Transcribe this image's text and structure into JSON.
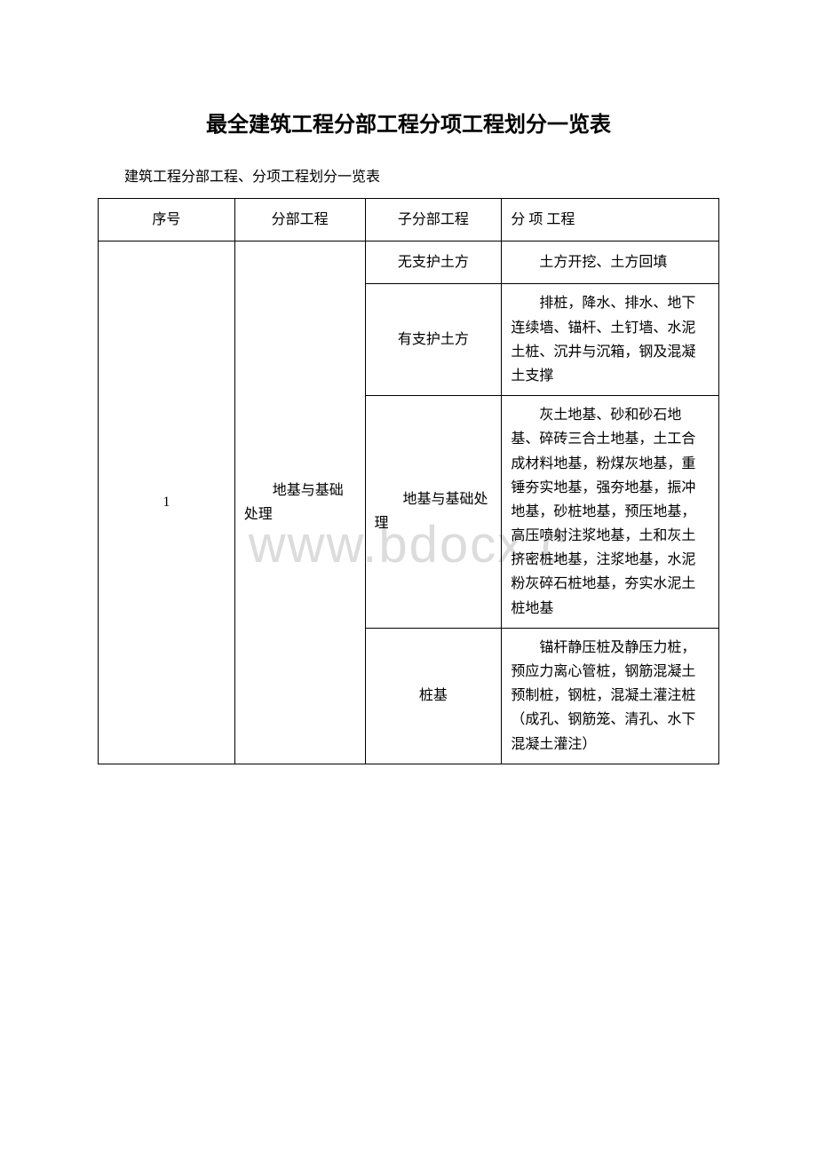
{
  "watermark": "www.bdocx.c",
  "title": "最全建筑工程分部工程分项工程划分一览表",
  "subtitle": "建筑工程分部工程、分项工程划分一览表",
  "table": {
    "headers": {
      "col1": "序号",
      "col2": "分部工程",
      "col3": "子分部工程",
      "col4": "分 项 工程"
    },
    "rows": [
      {
        "seq": "1",
        "division": "地基与基础处理",
        "sub_rows": [
          {
            "sub_division": "无支护土方",
            "items": "土方开挖、土方回填"
          },
          {
            "sub_division": "有支护土方",
            "items": "排桩，降水、排水、地下连续墙、锚杆、土钉墙、水泥土桩、沉井与沉箱，钢及混凝土支撑"
          },
          {
            "sub_division": "地基与基础处理",
            "items": "灰土地基、砂和砂石地基、碎砖三合土地基，土工合成材料地基，粉煤灰地基，重锤夯实地基，强夯地基，振冲地基，砂桩地基，预压地基，高压喷射注浆地基，土和灰土挤密桩地基，注浆地基，水泥粉灰碎石桩地基，夯实水泥土桩地基"
          },
          {
            "sub_division": "桩基",
            "items": "锚杆静压桩及静压力桩，预应力离心管桩，钢筋混凝土预制桩，钢桩，混凝土灌注桩（成孔、钢筋笼、清孔、水下混凝土灌注）"
          }
        ]
      }
    ]
  },
  "colors": {
    "text": "#000000",
    "watermark": "#dcdcdc",
    "background": "#ffffff",
    "border": "#000000"
  }
}
